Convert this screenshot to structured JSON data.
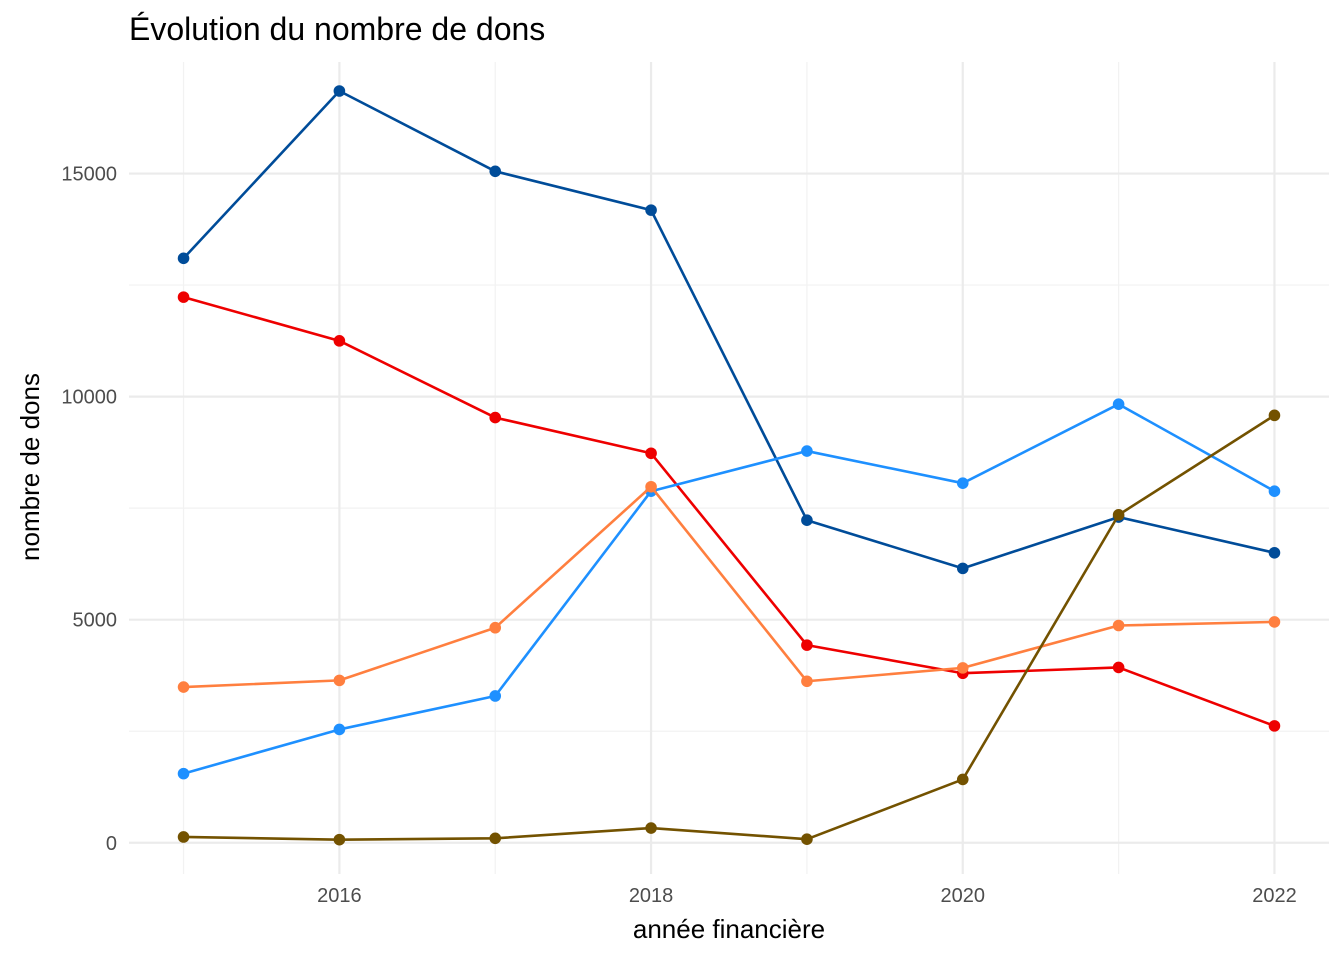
{
  "chart_data": {
    "type": "line",
    "title": "Évolution du nombre de dons",
    "xlabel": "année financière",
    "ylabel": "nombre de dons",
    "x": [
      2015,
      2016,
      2017,
      2018,
      2019,
      2020,
      2021,
      2022
    ],
    "xlim": [
      2014.65,
      2022.35
    ],
    "ylim": [
      -700,
      17500
    ],
    "x_ticks": [
      2016,
      2018,
      2020,
      2022
    ],
    "x_tick_labels": [
      "2016",
      "2018",
      "2020",
      "2022"
    ],
    "y_ticks": [
      0,
      5000,
      10000,
      15000
    ],
    "y_tick_labels": [
      "0",
      "5000",
      "10000",
      "15000"
    ],
    "grid": true,
    "legend": "none",
    "series": [
      {
        "color": "#004c99",
        "values": [
          13100,
          16850,
          15050,
          14180,
          7230,
          6150,
          7300,
          6500
        ]
      },
      {
        "color": "#ee0000",
        "values": [
          12230,
          11250,
          9530,
          8730,
          4430,
          3800,
          3930,
          2620
        ]
      },
      {
        "color": "#1e90ff",
        "values": [
          1550,
          2540,
          3290,
          7880,
          8780,
          8060,
          9830,
          7880
        ]
      },
      {
        "color": "#ff7f3f",
        "values": [
          3490,
          3640,
          4820,
          7980,
          3620,
          3920,
          4870,
          4950
        ]
      },
      {
        "color": "#735200",
        "values": [
          130,
          70,
          100,
          330,
          80,
          1420,
          7350,
          9580
        ]
      }
    ]
  }
}
